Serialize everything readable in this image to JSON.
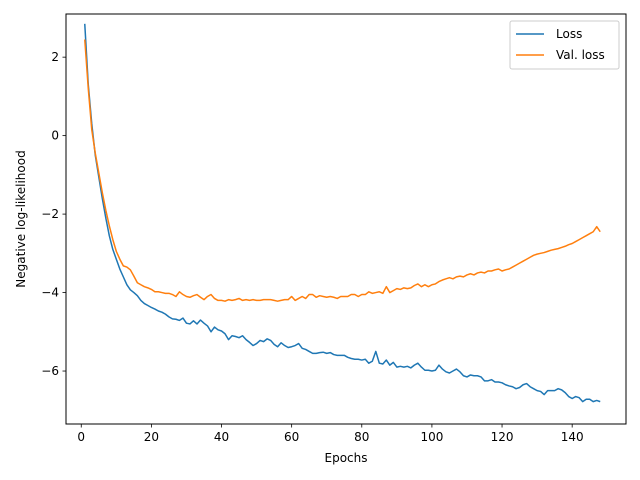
{
  "chart_data": {
    "type": "line",
    "title": "",
    "xlabel": "Epochs",
    "ylabel": "Negative log-likelihood",
    "xlim": [
      -4.35,
      155.35
    ],
    "ylim": [
      -7.35,
      3.1
    ],
    "xticks": [
      0,
      20,
      40,
      60,
      80,
      100,
      120,
      140
    ],
    "yticks": [
      2,
      0,
      -2,
      -4,
      -6
    ],
    "ytick_labels": [
      "2",
      "0",
      "−2",
      "−4",
      "−6"
    ],
    "grid": false,
    "legend": "top-right",
    "series": [
      {
        "name": "Loss",
        "color": "#1f77b4",
        "x": [
          1,
          2,
          3,
          4,
          5,
          6,
          7,
          8,
          9,
          10,
          11,
          12,
          13,
          14,
          15,
          16,
          17,
          18,
          19,
          20,
          21,
          22,
          23,
          24,
          25,
          26,
          27,
          28,
          29,
          30,
          31,
          32,
          33,
          34,
          35,
          36,
          37,
          38,
          39,
          40,
          41,
          42,
          43,
          44,
          45,
          46,
          47,
          48,
          49,
          50,
          51,
          52,
          53,
          54,
          55,
          56,
          57,
          58,
          59,
          60,
          61,
          62,
          63,
          64,
          65,
          66,
          67,
          68,
          69,
          70,
          71,
          72,
          73,
          74,
          75,
          76,
          77,
          78,
          79,
          80,
          81,
          82,
          83,
          84,
          85,
          86,
          87,
          88,
          89,
          90,
          91,
          92,
          93,
          94,
          95,
          96,
          97,
          98,
          99,
          100,
          101,
          102,
          103,
          104,
          105,
          106,
          107,
          108,
          109,
          110,
          111,
          112,
          113,
          114,
          115,
          116,
          117,
          118,
          119,
          120,
          121,
          122,
          123,
          124,
          125,
          126,
          127,
          128,
          129,
          130,
          131,
          132,
          133,
          134,
          135,
          136,
          137,
          138,
          139,
          140,
          141,
          142,
          143,
          144,
          145,
          146,
          147,
          148
        ],
        "y": [
          2.85,
          1.3,
          0.3,
          -0.5,
          -1.05,
          -1.6,
          -2.1,
          -2.55,
          -2.9,
          -3.15,
          -3.4,
          -3.6,
          -3.8,
          -3.93,
          -4.0,
          -4.08,
          -4.2,
          -4.28,
          -4.33,
          -4.38,
          -4.42,
          -4.47,
          -4.5,
          -4.55,
          -4.62,
          -4.67,
          -4.68,
          -4.71,
          -4.65,
          -4.78,
          -4.8,
          -4.72,
          -4.8,
          -4.7,
          -4.78,
          -4.85,
          -5.0,
          -4.88,
          -4.95,
          -4.98,
          -5.05,
          -5.2,
          -5.1,
          -5.12,
          -5.15,
          -5.1,
          -5.2,
          -5.27,
          -5.35,
          -5.3,
          -5.22,
          -5.25,
          -5.18,
          -5.22,
          -5.32,
          -5.38,
          -5.28,
          -5.35,
          -5.4,
          -5.38,
          -5.35,
          -5.3,
          -5.42,
          -5.45,
          -5.5,
          -5.55,
          -5.55,
          -5.53,
          -5.52,
          -5.55,
          -5.53,
          -5.58,
          -5.6,
          -5.6,
          -5.6,
          -5.65,
          -5.68,
          -5.7,
          -5.7,
          -5.72,
          -5.7,
          -5.8,
          -5.75,
          -5.5,
          -5.8,
          -5.82,
          -5.72,
          -5.85,
          -5.78,
          -5.9,
          -5.88,
          -5.9,
          -5.88,
          -5.92,
          -5.85,
          -5.8,
          -5.9,
          -5.98,
          -5.98,
          -6.0,
          -5.98,
          -5.85,
          -5.95,
          -6.02,
          -6.05,
          -6.0,
          -5.95,
          -6.02,
          -6.12,
          -6.15,
          -6.1,
          -6.12,
          -6.12,
          -6.15,
          -6.25,
          -6.25,
          -6.22,
          -6.28,
          -6.28,
          -6.3,
          -6.35,
          -6.38,
          -6.4,
          -6.45,
          -6.42,
          -6.35,
          -6.32,
          -6.4,
          -6.45,
          -6.5,
          -6.52,
          -6.6,
          -6.5,
          -6.5,
          -6.5,
          -6.45,
          -6.48,
          -6.55,
          -6.65,
          -6.7,
          -6.65,
          -6.68,
          -6.78,
          -6.72,
          -6.72,
          -6.78,
          -6.75,
          -6.78
        ]
      },
      {
        "name": "Val. loss",
        "color": "#ff7f0e",
        "x": [
          1,
          2,
          3,
          4,
          5,
          6,
          7,
          8,
          9,
          10,
          11,
          12,
          13,
          14,
          15,
          16,
          17,
          18,
          19,
          20,
          21,
          22,
          23,
          24,
          25,
          26,
          27,
          28,
          29,
          30,
          31,
          32,
          33,
          34,
          35,
          36,
          37,
          38,
          39,
          40,
          41,
          42,
          43,
          44,
          45,
          46,
          47,
          48,
          49,
          50,
          51,
          52,
          53,
          54,
          55,
          56,
          57,
          58,
          59,
          60,
          61,
          62,
          63,
          64,
          65,
          66,
          67,
          68,
          69,
          70,
          71,
          72,
          73,
          74,
          75,
          76,
          77,
          78,
          79,
          80,
          81,
          82,
          83,
          84,
          85,
          86,
          87,
          88,
          89,
          90,
          91,
          92,
          93,
          94,
          95,
          96,
          97,
          98,
          99,
          100,
          101,
          102,
          103,
          104,
          105,
          106,
          107,
          108,
          109,
          110,
          111,
          112,
          113,
          114,
          115,
          116,
          117,
          118,
          119,
          120,
          121,
          122,
          123,
          124,
          125,
          126,
          127,
          128,
          129,
          130,
          131,
          132,
          133,
          134,
          135,
          136,
          137,
          138,
          139,
          140,
          141,
          142,
          143,
          144,
          145,
          146,
          147,
          148
        ],
        "y": [
          2.45,
          1.2,
          0.15,
          -0.45,
          -0.95,
          -1.45,
          -1.9,
          -2.3,
          -2.65,
          -2.95,
          -3.15,
          -3.32,
          -3.35,
          -3.42,
          -3.58,
          -3.75,
          -3.8,
          -3.85,
          -3.88,
          -3.92,
          -3.98,
          -3.98,
          -4.0,
          -4.02,
          -4.02,
          -4.05,
          -4.1,
          -3.98,
          -4.05,
          -4.1,
          -4.12,
          -4.08,
          -4.05,
          -4.12,
          -4.18,
          -4.1,
          -4.05,
          -4.15,
          -4.2,
          -4.2,
          -4.22,
          -4.18,
          -4.2,
          -4.18,
          -4.15,
          -4.2,
          -4.18,
          -4.2,
          -4.18,
          -4.2,
          -4.2,
          -4.18,
          -4.18,
          -4.18,
          -4.2,
          -4.22,
          -4.2,
          -4.18,
          -4.18,
          -4.1,
          -4.2,
          -4.15,
          -4.1,
          -4.15,
          -4.05,
          -4.05,
          -4.12,
          -4.08,
          -4.1,
          -4.12,
          -4.1,
          -4.12,
          -4.15,
          -4.1,
          -4.1,
          -4.1,
          -4.05,
          -4.05,
          -4.1,
          -4.05,
          -4.05,
          -3.98,
          -4.02,
          -4.0,
          -3.98,
          -4.02,
          -3.85,
          -4.0,
          -3.95,
          -3.9,
          -3.92,
          -3.88,
          -3.9,
          -3.88,
          -3.82,
          -3.78,
          -3.85,
          -3.8,
          -3.85,
          -3.8,
          -3.78,
          -3.72,
          -3.68,
          -3.65,
          -3.62,
          -3.65,
          -3.6,
          -3.58,
          -3.6,
          -3.55,
          -3.52,
          -3.55,
          -3.5,
          -3.48,
          -3.5,
          -3.45,
          -3.45,
          -3.42,
          -3.4,
          -3.45,
          -3.42,
          -3.4,
          -3.35,
          -3.3,
          -3.25,
          -3.2,
          -3.15,
          -3.1,
          -3.05,
          -3.02,
          -3.0,
          -2.98,
          -2.95,
          -2.92,
          -2.9,
          -2.88,
          -2.85,
          -2.82,
          -2.78,
          -2.75,
          -2.7,
          -2.65,
          -2.6,
          -2.55,
          -2.5,
          -2.45,
          -2.32,
          -2.45
        ]
      }
    ]
  }
}
